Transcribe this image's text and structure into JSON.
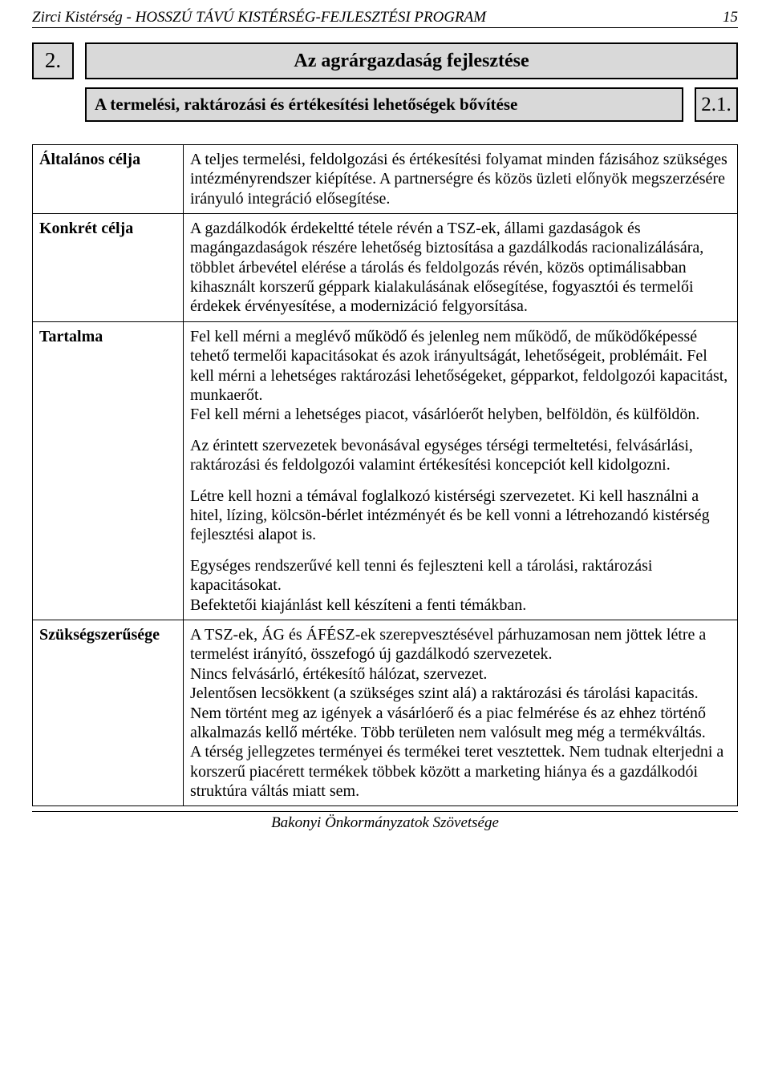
{
  "header": {
    "left": "Zirci Kistérség - HOSSZÚ TÁVÚ KISTÉRSÉG-FEJLESZTÉSI PROGRAM",
    "page_number": "15"
  },
  "section": {
    "number": "2.",
    "title": "Az agrárgazdaság fejlesztése",
    "sub_number": "2.1.",
    "sub_title": "A termelési, raktározási és értékesítési lehetőségek bővítése"
  },
  "rows": {
    "altalanos": {
      "label": "Általános célja",
      "text": "A teljes termelési, feldolgozási és értékesítési folyamat minden fázisához szükséges intézményrendszer kiépítése. A partnerségre és közös üzleti előnyök megszerzésére irányuló integráció elősegítése."
    },
    "konkret": {
      "label": "Konkrét célja",
      "text": "A gazdálkodók érdekeltté tétele révén a TSZ-ek, állami gazdaságok és magángazdaságok részére lehetőség biztosítása a gazdálkodás racionalizálására, többlet árbevétel elérése a tárolás és feldolgozás révén, közös optimálisabban kihasznált korszerű géppark kialakulásának elősegítése, fogyasztói és termelői érdekek érvényesítése, a modernizáció felgyorsítása."
    },
    "tartalma": {
      "label": "Tartalma",
      "p1": "Fel kell mérni a meglévő működő és jelenleg nem működő, de működőképessé tehető termelői kapacitásokat és azok irányultságát, lehetőségeit, problémáit. Fel kell mérni a lehetséges raktározási lehetőségeket, gépparkot, feldolgozói kapacitást, munkaerőt.\nFel kell mérni a lehetséges piacot, vásárlóerőt helyben, belföldön, és külföldön.",
      "p2": "Az érintett szervezetek bevonásával egységes térségi termeltetési, felvásárlási, raktározási és feldolgozói valamint értékesítési koncepciót kell kidolgozni.",
      "p3": "Létre kell hozni a témával  foglalkozó kistérségi szervezetet. Ki kell használni a hitel, lízing, kölcsön-bérlet intézményét és be kell vonni a létrehozandó kistérség fejlesztési alapot is.",
      "p4": "Egységes rendszerűvé kell tenni és fejleszteni kell a tárolási, raktározási kapacitásokat.\nBefektetői kiajánlást kell készíteni a fenti témákban."
    },
    "szukseg": {
      "label": "Szükségszerűsége",
      "text": "A TSZ-ek, ÁG és ÁFÉSZ-ek szerepvesztésével párhuzamosan nem jöttek létre a termelést irányító, összefogó új gazdálkodó szervezetek.\nNincs felvásárló, értékesítő hálózat, szervezet.\nJelentősen lecsökkent (a szükséges szint alá) a raktározási és tárolási kapacitás. Nem történt meg az igények a vásárlóerő és a piac felmérése és az ehhez történő alkalmazás kellő mértéke. Több területen nem valósult meg még a termékváltás.\nA térség jellegzetes terményei és termékei teret vesztettek. Nem tudnak elterjedni a korszerű piacérett termékek többek között a marketing hiánya és a gazdálkodói struktúra váltás miatt sem."
    }
  },
  "footer": "Bakonyi Önkormányzatok Szövetsége",
  "colors": {
    "box_bg": "#d9d9d9",
    "text": "#000000",
    "bg": "#ffffff"
  }
}
